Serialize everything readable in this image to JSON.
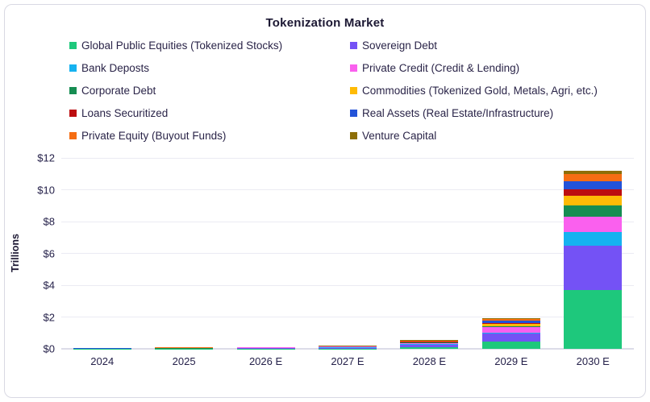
{
  "card": {
    "title": "Tokenization Market"
  },
  "chart_data": {
    "type": "bar",
    "stacked": true,
    "title": "Tokenization Market",
    "ylabel": "Trillions",
    "xlabel": "",
    "ylim": [
      0,
      12
    ],
    "ytick_step": 2,
    "ytick_prefix": "$",
    "grid": true,
    "legend_position": "top-two-columns",
    "units": "USD trillions",
    "categories": [
      "2024",
      "2025",
      "2026 E",
      "2027 E",
      "2028 E",
      "2029 E",
      "2030 E"
    ],
    "series": [
      {
        "name": "Global Public Equities (Tokenized Stocks)",
        "color": "#1ec87c",
        "values": [
          0.005,
          0.005,
          0.01,
          0.01,
          0.08,
          0.45,
          3.7
        ]
      },
      {
        "name": "Sovereign Debt",
        "color": "#7452f5",
        "values": [
          0.005,
          0.01,
          0.05,
          0.06,
          0.18,
          0.5,
          2.8
        ]
      },
      {
        "name": "Bank Deposts",
        "color": "#16b2f0",
        "values": [
          0.002,
          0.002,
          0.005,
          0.01,
          0.03,
          0.08,
          0.85
        ]
      },
      {
        "name": "Private Credit (Credit & Lending)",
        "color": "#fa60ee",
        "values": [
          0.005,
          0.01,
          0.02,
          0.06,
          0.08,
          0.33,
          0.95
        ]
      },
      {
        "name": "Corporate Debt",
        "color": "#168d52",
        "values": [
          0.002,
          0.002,
          0.005,
          0.005,
          0.03,
          0.08,
          0.7
        ]
      },
      {
        "name": "Commodities (Tokenized Gold, Metals, Agri, etc.)",
        "color": "#ffbb05",
        "values": [
          0.005,
          0.02,
          0.01,
          0.01,
          0.03,
          0.15,
          0.6
        ]
      },
      {
        "name": "Loans Securitized",
        "color": "#bc0d10",
        "values": [
          0.002,
          0.002,
          0.002,
          0.005,
          0.02,
          0.05,
          0.45
        ]
      },
      {
        "name": "Real Assets (Real Estate/Infrastructure)",
        "color": "#2353d8",
        "values": [
          0.005,
          0.005,
          0.005,
          0.01,
          0.03,
          0.15,
          0.5
        ]
      },
      {
        "name": "Private Equity (Buyout Funds)",
        "color": "#f56d13",
        "values": [
          0.005,
          0.03,
          0.01,
          0.01,
          0.04,
          0.08,
          0.45
        ]
      },
      {
        "name": "Venture Capital",
        "color": "#8d6e07",
        "values": [
          0.002,
          0.002,
          0.002,
          0.005,
          0.02,
          0.08,
          0.17
        ]
      }
    ]
  }
}
